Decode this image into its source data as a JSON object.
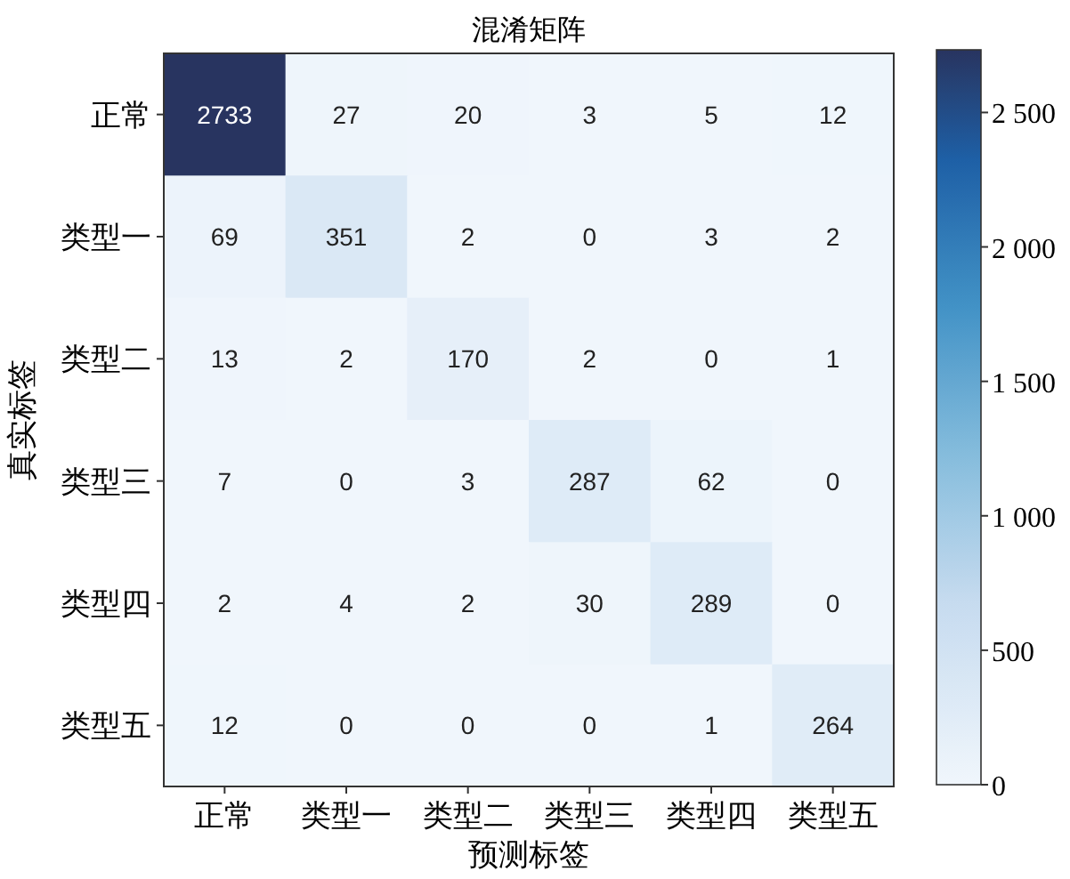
{
  "chart_data": {
    "type": "heatmap",
    "title": "混淆矩阵",
    "xlabel": "预测标签",
    "ylabel": "真实标签",
    "categories": [
      "正常",
      "类型一",
      "类型二",
      "类型三",
      "类型四",
      "类型五"
    ],
    "y_categories": [
      "正常",
      "类型一",
      "类型二",
      "类型三",
      "类型四",
      "类型五"
    ],
    "cells": [
      [
        2733,
        27,
        20,
        3,
        5,
        12
      ],
      [
        69,
        351,
        2,
        0,
        3,
        2
      ],
      [
        13,
        2,
        170,
        2,
        0,
        1
      ],
      [
        7,
        0,
        3,
        287,
        62,
        0
      ],
      [
        2,
        4,
        2,
        30,
        289,
        0
      ],
      [
        12,
        0,
        0,
        0,
        1,
        264
      ]
    ],
    "clim": [
      0,
      2733
    ],
    "cticks": [
      0,
      500,
      {
        "value": 1000,
        "label": "1 000"
      },
      {
        "value": 1500,
        "label": "1 500"
      },
      {
        "value": 2000,
        "label": "2 000"
      },
      {
        "value": 2500,
        "label": "2 500"
      }
    ],
    "data_labels": true
  }
}
